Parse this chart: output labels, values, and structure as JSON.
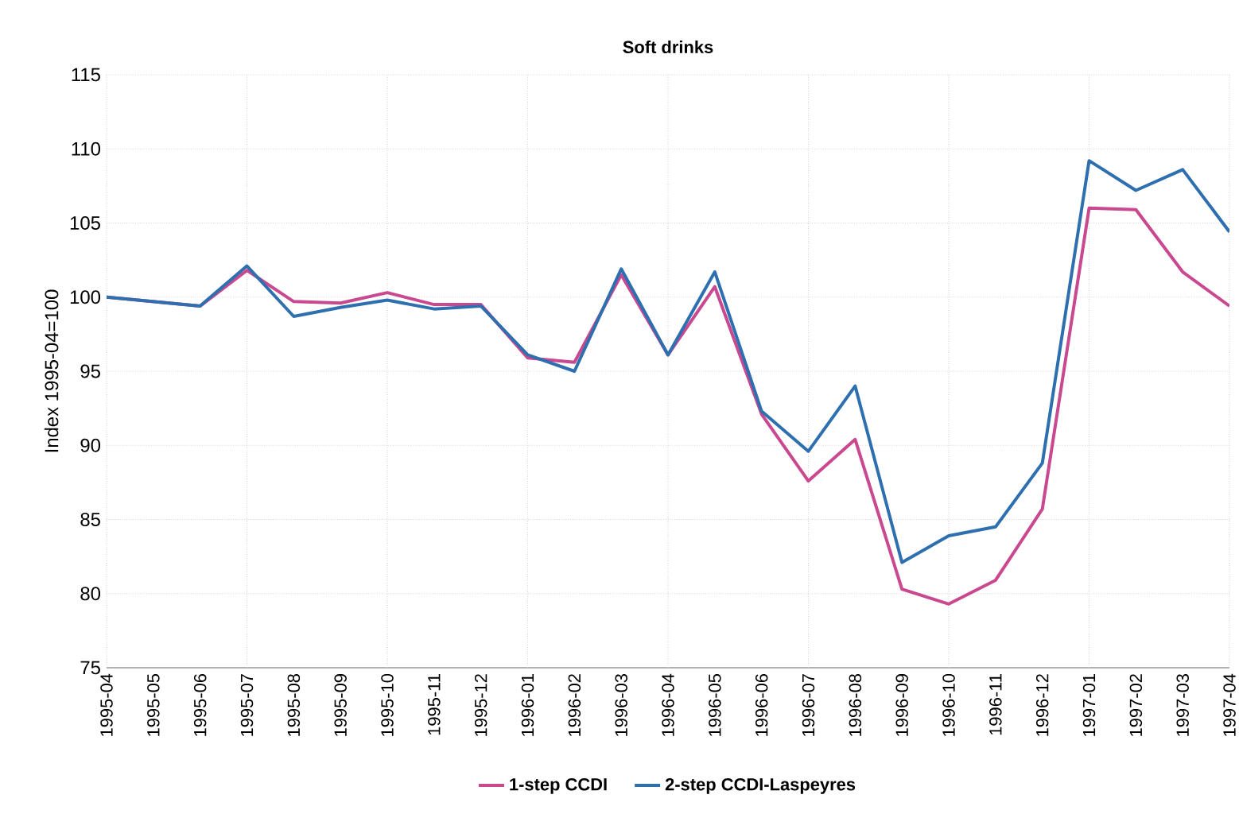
{
  "chart_data": {
    "type": "line",
    "title": "Soft drinks",
    "ylabel": "Index 1995-04=100",
    "categories": [
      "1995-04",
      "1995-05",
      "1995-06",
      "1995-07",
      "1995-08",
      "1995-09",
      "1995-10",
      "1995-11",
      "1995-12",
      "1996-01",
      "1996-02",
      "1996-03",
      "1996-04",
      "1996-05",
      "1996-06",
      "1996-07",
      "1996-08",
      "1996-09",
      "1996-10",
      "1996-11",
      "1996-12",
      "1997-01",
      "1997-02",
      "1997-03",
      "1997-04"
    ],
    "series": [
      {
        "name": "1-step CCDI",
        "color": "#c9488f",
        "values": [
          100,
          99.7,
          99.4,
          101.8,
          99.7,
          99.6,
          100.3,
          99.5,
          99.5,
          95.9,
          95.6,
          101.5,
          96.1,
          100.7,
          92.1,
          87.6,
          90.4,
          80.3,
          79.3,
          80.9,
          85.7,
          106.0,
          105.9,
          101.7,
          99.4
        ]
      },
      {
        "name": "2-step CCDI-Laspeyres",
        "color": "#2e6fb0",
        "values": [
          100,
          99.7,
          99.4,
          102.1,
          98.7,
          99.3,
          99.8,
          99.2,
          99.4,
          96.1,
          95.0,
          101.9,
          96.1,
          101.7,
          92.3,
          89.6,
          94.0,
          82.1,
          83.9,
          84.5,
          88.8,
          109.2,
          107.2,
          108.6,
          104.4
        ]
      }
    ],
    "ylim": [
      75,
      115
    ],
    "yticks": [
      75,
      80,
      85,
      90,
      95,
      100,
      105,
      110,
      115
    ],
    "grid": true,
    "legend": "bottom",
    "marker": "none",
    "line_style": "solid"
  }
}
